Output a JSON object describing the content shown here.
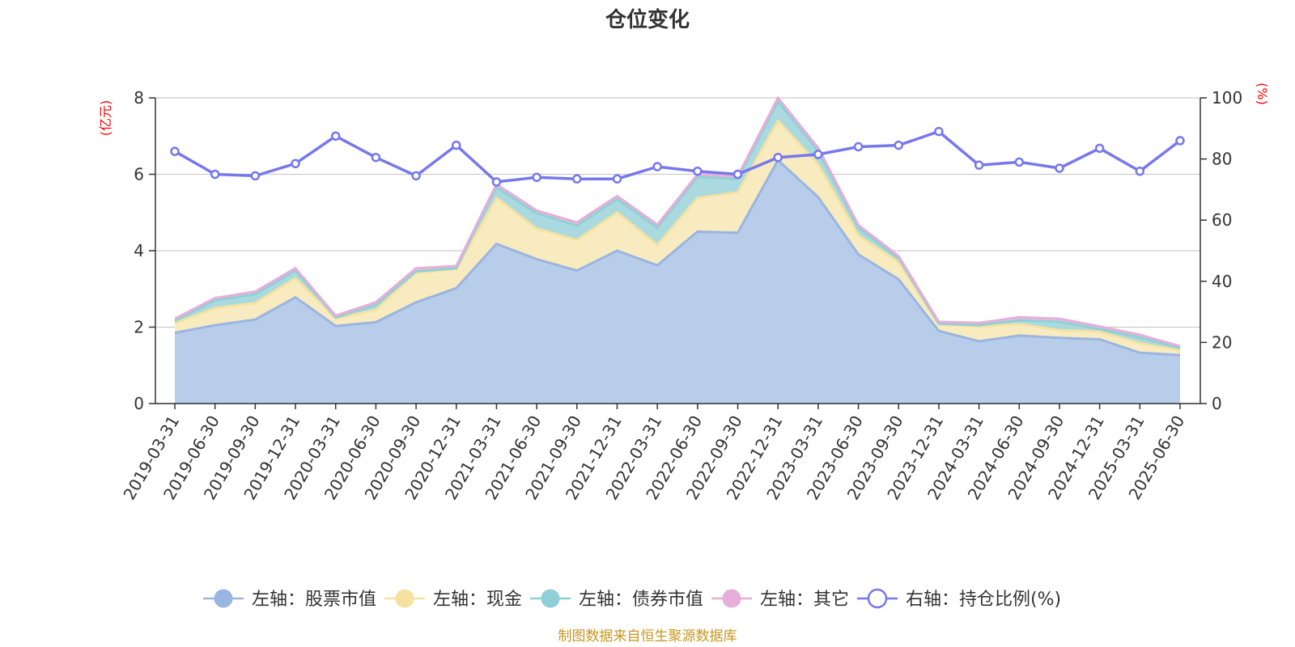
{
  "chart_data": {
    "type": "area",
    "title": "仓位变化",
    "left_axis_unit": "(亿元)",
    "right_axis_unit": "(%)",
    "ylim_left": [
      0,
      8
    ],
    "yticks_left": [
      "0",
      "2",
      "4",
      "6",
      "8"
    ],
    "ylim_right": [
      0,
      100
    ],
    "yticks_right": [
      "0",
      "20",
      "40",
      "60",
      "80",
      "100"
    ],
    "grid": true,
    "legend_position": "bottom",
    "categories": [
      "2019-03-31",
      "2019-06-30",
      "2019-09-30",
      "2019-12-31",
      "2020-03-31",
      "2020-06-30",
      "2020-09-30",
      "2020-12-31",
      "2021-03-31",
      "2021-06-30",
      "2021-09-30",
      "2021-12-31",
      "2022-03-31",
      "2022-06-30",
      "2022-09-30",
      "2022-12-31",
      "2023-03-31",
      "2023-06-30",
      "2023-09-30",
      "2023-12-31",
      "2024-03-31",
      "2024-06-30",
      "2024-09-30",
      "2024-12-31",
      "2025-03-31",
      "2025-06-30"
    ],
    "series": [
      {
        "name": "左轴：股票市值",
        "axis": "left",
        "color": "#9ab5e0",
        "fill": "#b8cdea",
        "values": [
          1.85,
          2.05,
          2.2,
          2.78,
          2.03,
          2.13,
          2.65,
          3.02,
          4.18,
          3.78,
          3.48,
          4.0,
          3.62,
          4.5,
          4.47,
          6.37,
          5.4,
          3.9,
          3.25,
          1.9,
          1.63,
          1.78,
          1.72,
          1.68,
          1.33,
          1.27
        ]
      },
      {
        "name": "左轴：现金",
        "axis": "left",
        "color": "#f5e2a0",
        "fill": "#f8ebc0",
        "values": [
          0.25,
          0.45,
          0.43,
          0.5,
          0.2,
          0.32,
          0.77,
          0.5,
          1.2,
          0.8,
          0.8,
          1.0,
          0.53,
          0.88,
          1.06,
          1.03,
          0.86,
          0.5,
          0.45,
          0.17,
          0.38,
          0.3,
          0.2,
          0.2,
          0.25,
          0.12
        ]
      },
      {
        "name": "左轴：债券市值",
        "axis": "left",
        "color": "#8fd0d6",
        "fill": "#aadadf",
        "values": [
          0.07,
          0.2,
          0.23,
          0.2,
          0.02,
          0.13,
          0.04,
          0.02,
          0.28,
          0.4,
          0.38,
          0.35,
          0.45,
          0.55,
          0.35,
          0.5,
          0.35,
          0.2,
          0.1,
          0.02,
          0.04,
          0.1,
          0.22,
          0.07,
          0.15,
          0.06
        ]
      },
      {
        "name": "左轴：其它",
        "axis": "left",
        "color": "#e6aed8",
        "fill": "#f0c5e4",
        "values": [
          0.05,
          0.06,
          0.07,
          0.06,
          0.05,
          0.07,
          0.08,
          0.06,
          0.08,
          0.07,
          0.08,
          0.08,
          0.08,
          0.07,
          0.07,
          0.1,
          0.08,
          0.07,
          0.06,
          0.05,
          0.06,
          0.08,
          0.08,
          0.07,
          0.07,
          0.05
        ]
      },
      {
        "name": "右轴：持仓比例(%)",
        "axis": "right",
        "color": "#7777ee",
        "values": [
          82.5,
          75,
          74.5,
          78.5,
          87.5,
          80.5,
          74.5,
          84.5,
          72.5,
          74,
          73.5,
          73.5,
          77.5,
          76,
          75,
          80.5,
          81.5,
          84,
          84.5,
          89,
          78,
          79,
          77,
          83.5,
          76,
          86
        ]
      }
    ]
  },
  "footer": {
    "source": "制图数据来自恒生聚源数据库"
  }
}
